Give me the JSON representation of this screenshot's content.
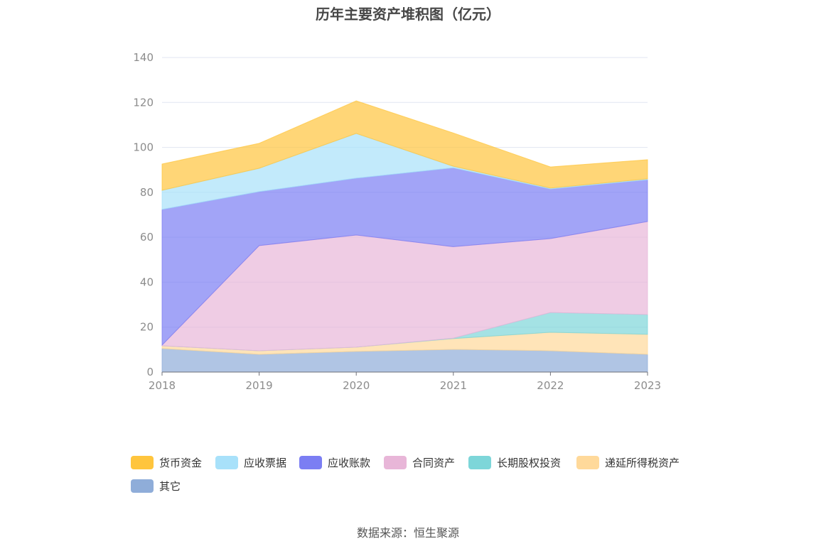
{
  "source": "数据来源：恒生聚源",
  "chart_data": {
    "type": "area",
    "stacked": true,
    "title": "历年主要资产堆积图（亿元）",
    "x": [
      "2018",
      "2019",
      "2020",
      "2021",
      "2022",
      "2023"
    ],
    "ylim": [
      0,
      140
    ],
    "yticks": [
      0,
      20,
      40,
      60,
      80,
      100,
      120,
      140
    ],
    "grid": true,
    "legend_position": "bottom",
    "series": [
      {
        "name": "货币资金",
        "color": "#ffc53d",
        "values": [
          11.7,
          11.1,
          14.5,
          14.8,
          9.4,
          8.5
        ]
      },
      {
        "name": "应收票据",
        "color": "#a8e1fa",
        "values": [
          8.5,
          10.4,
          19.9,
          0.7,
          0.4,
          0.4
        ]
      },
      {
        "name": "应收账款",
        "color": "#7b7ef3",
        "values": [
          60.4,
          24.0,
          25.3,
          35.1,
          22.1,
          18.6
        ]
      },
      {
        "name": "合同资产",
        "color": "#e8b6d8",
        "values": [
          0.3,
          46.8,
          49.9,
          40.7,
          32.9,
          41.4
        ]
      },
      {
        "name": "长期股权投资",
        "color": "#7dd6d9",
        "values": [
          0.0,
          0.0,
          0.0,
          0.2,
          8.8,
          8.8
        ]
      },
      {
        "name": "递延所得税资产",
        "color": "#ffd99a",
        "values": [
          1.2,
          1.6,
          1.9,
          4.8,
          8.2,
          8.9
        ]
      },
      {
        "name": "其它",
        "color": "#8fadd9",
        "values": [
          10.5,
          7.9,
          9.2,
          10.1,
          9.5,
          7.9
        ]
      }
    ]
  }
}
